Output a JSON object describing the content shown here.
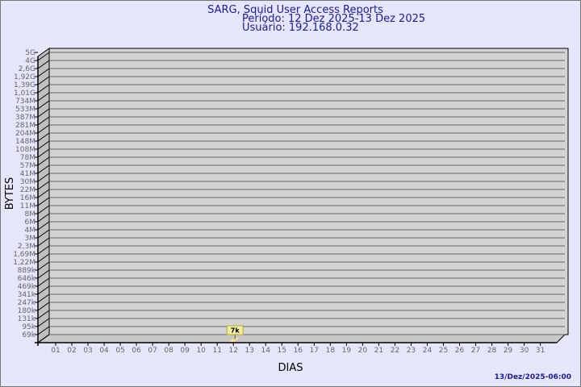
{
  "chart_data": {
    "type": "bar",
    "title": "SARG, Squid User Access Reports",
    "subtitle_lines": [
      "Período: 12 Dez 2025-13 Dez 2025",
      "Usuário: 192.168.0.32"
    ],
    "xlabel": "DIAS",
    "ylabel": "BYTES",
    "y_scale": "log",
    "grid": true,
    "y_tick_labels": [
      "5G",
      "4G",
      "2,6G",
      "1,92G",
      "1,39G",
      "1,01G",
      "734M",
      "533M",
      "387M",
      "281M",
      "204M",
      "148M",
      "108M",
      "78M",
      "57M",
      "41M",
      "30M",
      "22M",
      "16M",
      "11M",
      "8M",
      "6M",
      "4M",
      "3M",
      "2,3M",
      "1,69M",
      "1,22M",
      "889k",
      "646k",
      "469k",
      "341k",
      "247k",
      "180k",
      "131k",
      "95k",
      "69k"
    ],
    "categories": [
      "01",
      "02",
      "03",
      "04",
      "05",
      "06",
      "07",
      "08",
      "09",
      "10",
      "11",
      "12",
      "13",
      "14",
      "15",
      "16",
      "17",
      "18",
      "19",
      "20",
      "21",
      "22",
      "23",
      "24",
      "25",
      "26",
      "27",
      "28",
      "29",
      "30",
      "31"
    ],
    "points": [
      {
        "x": "12",
        "value": 7000,
        "label": "7k"
      }
    ],
    "colors": {
      "background": "#e6e6fa",
      "plot": "#d3d3d3",
      "bar": "#ffe680",
      "label_box": "#f0ee9e",
      "title": "#1a1a99"
    },
    "timestamp": "13/Dez/2025-06:00"
  }
}
